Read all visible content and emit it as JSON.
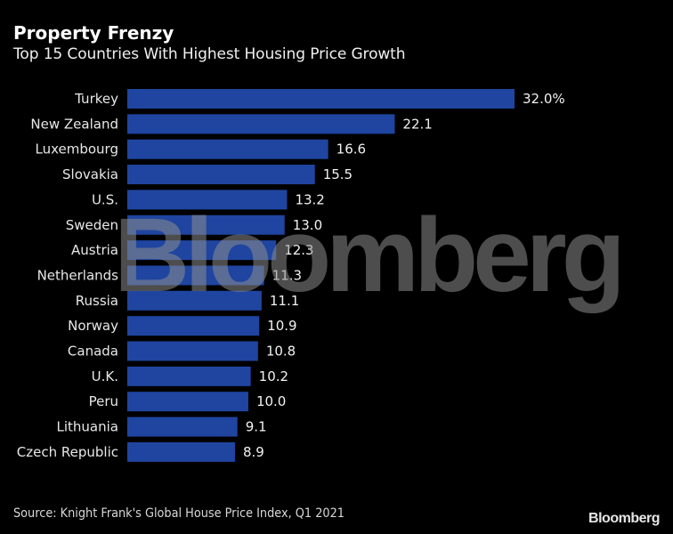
{
  "header": {
    "title": "Property Frenzy",
    "subtitle": "Top 15 Countries With Highest Housing Price Growth"
  },
  "watermark": "Bloomberg",
  "footer": {
    "source": "Source: Knight Frank's Global House Price Index, Q1 2021",
    "logo": "Bloomberg"
  },
  "colors": {
    "bar": "#1f45a0",
    "background": "#000000"
  },
  "chart_data": {
    "type": "bar",
    "orientation": "horizontal",
    "title": "Property Frenzy",
    "subtitle": "Top 15 Countries With Highest Housing Price Growth",
    "xlabel": "",
    "ylabel": "",
    "unit": "%",
    "grid": false,
    "legend": "none",
    "xlim": [
      0,
      32
    ],
    "categories": [
      "Turkey",
      "New Zealand",
      "Luxembourg",
      "Slovakia",
      "U.S.",
      "Sweden",
      "Austria",
      "Netherlands",
      "Russia",
      "Norway",
      "Canada",
      "U.K.",
      "Peru",
      "Lithuania",
      "Czech Republic"
    ],
    "values": [
      32.0,
      22.1,
      16.6,
      15.5,
      13.2,
      13.0,
      12.3,
      11.3,
      11.1,
      10.9,
      10.8,
      10.2,
      10.0,
      9.1,
      8.9
    ],
    "value_labels": [
      "32.0%",
      "22.1",
      "16.6",
      "15.5",
      "13.2",
      "13.0",
      "12.3",
      "11.3",
      "11.1",
      "10.9",
      "10.8",
      "10.2",
      "10.0",
      "9.1",
      "8.9"
    ]
  }
}
